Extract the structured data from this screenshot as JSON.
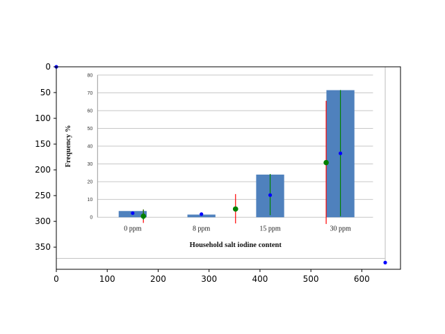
{
  "chart_data": [
    {
      "type": "bar",
      "role": "outer-image-axes",
      "xlim": [
        0,
        676
      ],
      "ylim": [
        393,
        0
      ],
      "xticks": [
        0,
        100,
        200,
        300,
        400,
        500,
        600
      ],
      "yticks": [
        0,
        50,
        100,
        150,
        200,
        250,
        300,
        350
      ],
      "xtick_labels": [
        "0",
        "100",
        "200",
        "300",
        "400",
        "500",
        "600"
      ],
      "ytick_labels": [
        "0",
        "50",
        "100",
        "150",
        "200",
        "250",
        "300",
        "350"
      ],
      "overlay": {
        "blue_points": [
          [
            0,
            0
          ],
          [
            150,
            284
          ],
          [
            285,
            286
          ],
          [
            420,
            249
          ],
          [
            558,
            168
          ],
          [
            646,
            380
          ]
        ],
        "green_points": [
          [
            171,
            290
          ],
          [
            352,
            276
          ],
          [
            530,
            186
          ]
        ],
        "red_segments": [
          [
            [
              171,
              277
            ],
            [
              171,
              303
            ]
          ],
          [
            [
              352,
              247
            ],
            [
              352,
              304
            ]
          ],
          [
            [
              530,
              66
            ],
            [
              530,
              305
            ]
          ]
        ],
        "green_segments": [
          [
            [
              171,
              277
            ],
            [
              171,
              297
            ]
          ],
          [
            [
              420,
              208
            ],
            [
              420,
              288
            ]
          ],
          [
            [
              558,
              45
            ],
            [
              558,
              290
            ]
          ]
        ]
      }
    },
    {
      "type": "bar",
      "role": "embedded-chart",
      "categories": [
        "0 ppm",
        "8 ppm",
        "15 ppm",
        "30 ppm"
      ],
      "values": [
        3.5,
        1.5,
        24,
        71.5
      ],
      "xlabel": "Household salt iodine content",
      "ylabel": "Frequency %",
      "ylim": [
        0,
        80
      ],
      "yticks": [
        "0",
        "10",
        "20",
        "30",
        "40",
        "50",
        "60",
        "70",
        "80"
      ],
      "grid": true,
      "bar_color": "#4f81bd"
    }
  ]
}
